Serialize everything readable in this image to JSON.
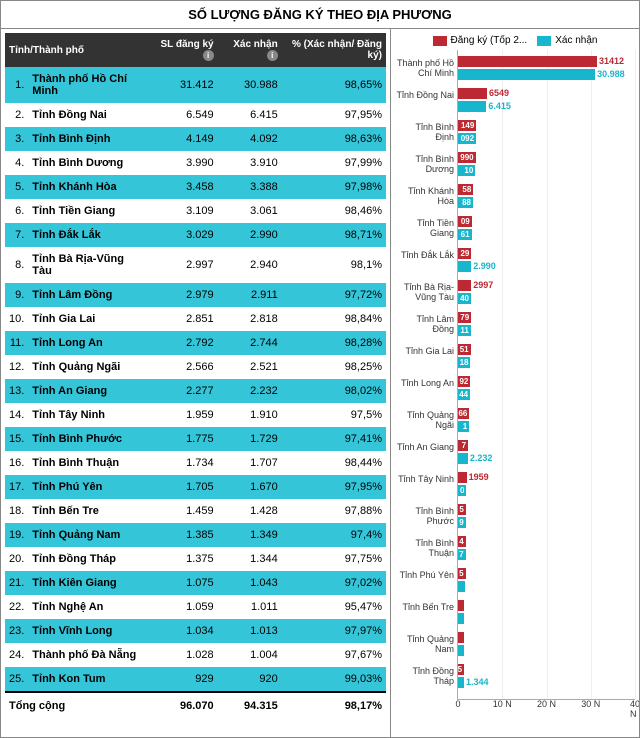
{
  "title": "SỐ LƯỢNG ĐĂNG KÝ THEO ĐỊA PHƯƠNG",
  "table": {
    "headers": {
      "province": "Tỉnh/Thành phố",
      "regs": "SL đăng ký",
      "confirms": "Xác nhận",
      "pct": "% (Xác nhận/ Đăng ký)"
    },
    "rows": [
      {
        "idx": "1.",
        "name": "Thành phố Hồ Chí Minh",
        "reg": "31.412",
        "conf": "30.988",
        "pct": "98,65%"
      },
      {
        "idx": "2.",
        "name": "Tỉnh Đồng Nai",
        "reg": "6.549",
        "conf": "6.415",
        "pct": "97,95%"
      },
      {
        "idx": "3.",
        "name": "Tỉnh Bình Định",
        "reg": "4.149",
        "conf": "4.092",
        "pct": "98,63%"
      },
      {
        "idx": "4.",
        "name": "Tỉnh Bình Dương",
        "reg": "3.990",
        "conf": "3.910",
        "pct": "97,99%"
      },
      {
        "idx": "5.",
        "name": "Tỉnh Khánh Hòa",
        "reg": "3.458",
        "conf": "3.388",
        "pct": "97,98%"
      },
      {
        "idx": "6.",
        "name": "Tỉnh Tiền Giang",
        "reg": "3.109",
        "conf": "3.061",
        "pct": "98,46%"
      },
      {
        "idx": "7.",
        "name": "Tỉnh Đắk Lắk",
        "reg": "3.029",
        "conf": "2.990",
        "pct": "98,71%"
      },
      {
        "idx": "8.",
        "name": "Tỉnh Bà Rịa-Vũng Tàu",
        "reg": "2.997",
        "conf": "2.940",
        "pct": "98,1%"
      },
      {
        "idx": "9.",
        "name": "Tỉnh Lâm Đồng",
        "reg": "2.979",
        "conf": "2.911",
        "pct": "97,72%"
      },
      {
        "idx": "10.",
        "name": "Tỉnh Gia Lai",
        "reg": "2.851",
        "conf": "2.818",
        "pct": "98,84%"
      },
      {
        "idx": "11.",
        "name": "Tỉnh Long An",
        "reg": "2.792",
        "conf": "2.744",
        "pct": "98,28%"
      },
      {
        "idx": "12.",
        "name": "Tỉnh Quảng Ngãi",
        "reg": "2.566",
        "conf": "2.521",
        "pct": "98,25%"
      },
      {
        "idx": "13.",
        "name": "Tỉnh An Giang",
        "reg": "2.277",
        "conf": "2.232",
        "pct": "98,02%"
      },
      {
        "idx": "14.",
        "name": "Tỉnh Tây Ninh",
        "reg": "1.959",
        "conf": "1.910",
        "pct": "97,5%"
      },
      {
        "idx": "15.",
        "name": "Tỉnh Bình Phước",
        "reg": "1.775",
        "conf": "1.729",
        "pct": "97,41%"
      },
      {
        "idx": "16.",
        "name": "Tỉnh Bình Thuận",
        "reg": "1.734",
        "conf": "1.707",
        "pct": "98,44%"
      },
      {
        "idx": "17.",
        "name": "Tỉnh Phú Yên",
        "reg": "1.705",
        "conf": "1.670",
        "pct": "97,95%"
      },
      {
        "idx": "18.",
        "name": "Tỉnh Bến Tre",
        "reg": "1.459",
        "conf": "1.428",
        "pct": "97,88%"
      },
      {
        "idx": "19.",
        "name": "Tỉnh Quảng Nam",
        "reg": "1.385",
        "conf": "1.349",
        "pct": "97,4%"
      },
      {
        "idx": "20.",
        "name": "Tỉnh Đồng Tháp",
        "reg": "1.375",
        "conf": "1.344",
        "pct": "97,75%"
      },
      {
        "idx": "21.",
        "name": "Tỉnh Kiên Giang",
        "reg": "1.075",
        "conf": "1.043",
        "pct": "97,02%"
      },
      {
        "idx": "22.",
        "name": "Tỉnh Nghệ An",
        "reg": "1.059",
        "conf": "1.011",
        "pct": "95,47%"
      },
      {
        "idx": "23.",
        "name": "Tỉnh Vĩnh Long",
        "reg": "1.034",
        "conf": "1.013",
        "pct": "97,97%"
      },
      {
        "idx": "24.",
        "name": "Thành phố Đà Nẵng",
        "reg": "1.028",
        "conf": "1.004",
        "pct": "97,67%"
      },
      {
        "idx": "25.",
        "name": "Tỉnh Kon Tum",
        "reg": "929",
        "conf": "920",
        "pct": "99,03%"
      }
    ],
    "footer": {
      "label": "Tổng cộng",
      "reg": "96.070",
      "conf": "94.315",
      "pct": "98,17%"
    }
  },
  "chart": {
    "legend_reg": "Đăng ký (Tốp 2...",
    "legend_conf": "Xác nhận",
    "reg_color": "#bc2932",
    "conf_color": "#17b6cd",
    "xmax": 40000,
    "x_ticks": [
      0,
      10000,
      20000,
      30000,
      40000
    ],
    "x_labels": [
      "0",
      "10 N",
      "20 N",
      "30 N",
      "40 N"
    ],
    "rows": [
      {
        "label": "Thành phố Hồ Chí Minh",
        "reg": 31412,
        "conf": 30988,
        "reg_lbl": "31412",
        "conf_lbl": "30.988",
        "callout": "none"
      },
      {
        "label": "Tỉnh Đồng Nai",
        "reg": 6549,
        "conf": 6415,
        "reg_lbl": "6549",
        "conf_lbl": "6.415",
        "callout": "none"
      },
      {
        "label": "Tỉnh Bình Định",
        "reg": 4149,
        "conf": 4092,
        "reg_lbl": "149",
        "conf_lbl": "092",
        "callout": "inside"
      },
      {
        "label": "Tỉnh Bình Dương",
        "reg": 3990,
        "conf": 3910,
        "reg_lbl": "990",
        "conf_lbl": "10",
        "callout": "inside"
      },
      {
        "label": "Tỉnh Khánh Hòa",
        "reg": 3458,
        "conf": 3388,
        "reg_lbl": "58",
        "conf_lbl": "88",
        "callout": "inside"
      },
      {
        "label": "Tỉnh Tiền Giang",
        "reg": 3109,
        "conf": 3061,
        "reg_lbl": "09",
        "conf_lbl": "61",
        "callout": "inside"
      },
      {
        "label": "Tỉnh Đắk Lắk",
        "reg": 3029,
        "conf": 2990,
        "reg_lbl": "29",
        "conf_lbl": "2.990",
        "callout": "conf_out"
      },
      {
        "label": "Tỉnh Bà Rịa-Vũng Tàu",
        "reg": 2997,
        "conf": 2940,
        "reg_lbl": "2997",
        "conf_lbl": "40",
        "callout": "reg_out"
      },
      {
        "label": "Tỉnh Lâm Đồng",
        "reg": 2979,
        "conf": 2911,
        "reg_lbl": "79",
        "conf_lbl": "11",
        "callout": "inside"
      },
      {
        "label": "Tỉnh Gia Lai",
        "reg": 2851,
        "conf": 2818,
        "reg_lbl": "51",
        "conf_lbl": "18",
        "callout": "inside"
      },
      {
        "label": "Tỉnh Long An",
        "reg": 2792,
        "conf": 2744,
        "reg_lbl": "92",
        "conf_lbl": "44",
        "callout": "inside"
      },
      {
        "label": "Tỉnh Quảng Ngãi",
        "reg": 2566,
        "conf": 2521,
        "reg_lbl": "66",
        "conf_lbl": "1",
        "callout": "inside"
      },
      {
        "label": "Tỉnh An Giang",
        "reg": 2277,
        "conf": 2232,
        "reg_lbl": "7",
        "conf_lbl": "2.232",
        "callout": "conf_out"
      },
      {
        "label": "Tỉnh Tây Ninh",
        "reg": 1959,
        "conf": 1910,
        "reg_lbl": "1959",
        "conf_lbl": "0",
        "callout": "reg_out"
      },
      {
        "label": "Tỉnh Bình Phước",
        "reg": 1775,
        "conf": 1729,
        "reg_lbl": "5",
        "conf_lbl": "9",
        "callout": "inside"
      },
      {
        "label": "Tỉnh Bình Thuận",
        "reg": 1734,
        "conf": 1707,
        "reg_lbl": "4",
        "conf_lbl": "7",
        "callout": "inside"
      },
      {
        "label": "Tỉnh Phú Yên",
        "reg": 1705,
        "conf": 1670,
        "reg_lbl": "5",
        "conf_lbl": "",
        "callout": "inside"
      },
      {
        "label": "Tỉnh Bến Tre",
        "reg": 1459,
        "conf": 1428,
        "reg_lbl": "",
        "conf_lbl": "",
        "callout": "inside"
      },
      {
        "label": "Tỉnh Quảng Nam",
        "reg": 1385,
        "conf": 1349,
        "reg_lbl": "",
        "conf_lbl": "",
        "callout": "inside"
      },
      {
        "label": "Tỉnh Đồng Tháp",
        "reg": 1375,
        "conf": 1344,
        "reg_lbl": "5",
        "conf_lbl": "1.344",
        "callout": "conf_out"
      }
    ]
  }
}
